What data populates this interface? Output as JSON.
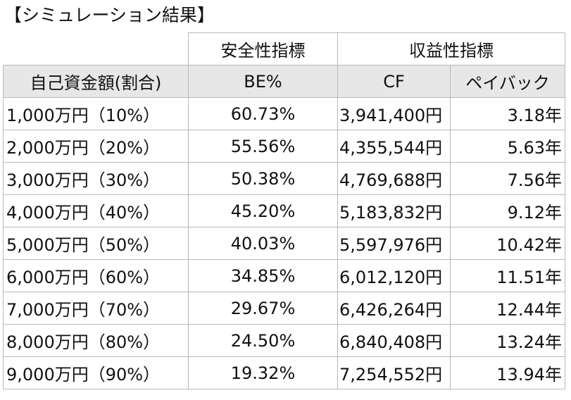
{
  "title": "【シミュレーション結果】",
  "groups": {
    "safety": "安全性指標",
    "profit": "収益性指標"
  },
  "headers": {
    "rate": "自己資金額(割合)",
    "be": "BE%",
    "cf": "CF",
    "payback": "ペイバック"
  },
  "rows": [
    {
      "rate": "1,000万円（10%）",
      "be": "60.73%",
      "cf": "3,941,400円",
      "payback": "3.18年"
    },
    {
      "rate": "2,000万円（20%）",
      "be": "55.56%",
      "cf": "4,355,544円",
      "payback": "5.63年"
    },
    {
      "rate": "3,000万円（30%）",
      "be": "50.38%",
      "cf": "4,769,688円",
      "payback": "7.56年"
    },
    {
      "rate": "4,000万円（40%）",
      "be": "45.20%",
      "cf": "5,183,832円",
      "payback": "9.12年"
    },
    {
      "rate": "5,000万円（50%）",
      "be": "40.03%",
      "cf": "5,597,976円",
      "payback": "10.42年"
    },
    {
      "rate": "6,000万円（60%）",
      "be": "34.85%",
      "cf": "6,012,120円",
      "payback": "11.51年"
    },
    {
      "rate": "7,000万円（70%）",
      "be": "29.67%",
      "cf": "6,426,264円",
      "payback": "12.44年"
    },
    {
      "rate": "8,000万円（80%）",
      "be": "24.50%",
      "cf": "6,840,408円",
      "payback": "13.24年"
    },
    {
      "rate": "9,000万円（90%）",
      "be": "19.32%",
      "cf": "7,254,552円",
      "payback": "13.94年"
    }
  ]
}
